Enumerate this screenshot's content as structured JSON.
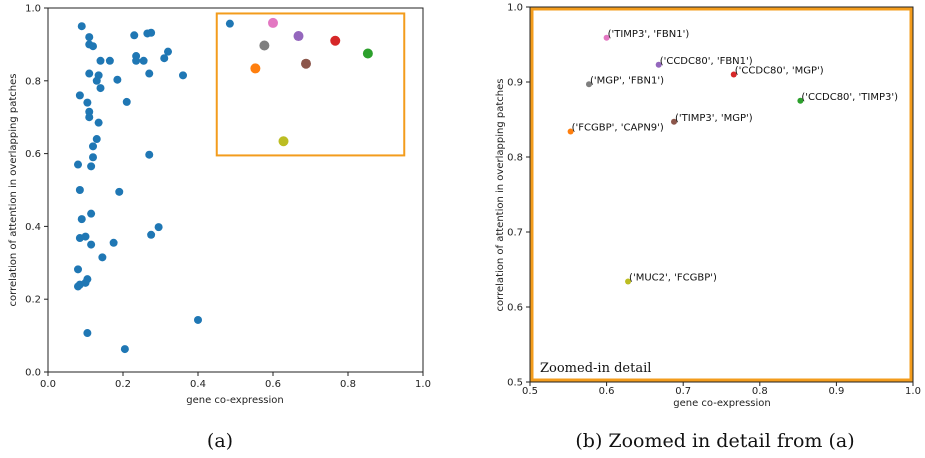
{
  "colors": {
    "scatter_blue": "#1f77b4",
    "highlight": "#f39c1c",
    "axis": "#222222"
  },
  "chart_data": [
    {
      "type": "scatter",
      "caption": "(a)",
      "xlabel": "gene co-expression",
      "ylabel": "correlation of attention in overlapping patches",
      "xlim": [
        0.0,
        1.0
      ],
      "ylim": [
        0.0,
        1.0
      ],
      "xticks": [
        "0.0",
        "0.2",
        "0.4",
        "0.6",
        "0.8",
        "1.0"
      ],
      "yticks": [
        "0.0",
        "0.2",
        "0.4",
        "0.6",
        "0.8",
        "1.0"
      ],
      "highlight_box": {
        "x": [
          0.45,
          0.95
        ],
        "y": [
          0.595,
          0.985
        ]
      },
      "points": [
        [
          0.09,
          0.95
        ],
        [
          0.11,
          0.92
        ],
        [
          0.11,
          0.9
        ],
        [
          0.12,
          0.895
        ],
        [
          0.14,
          0.855
        ],
        [
          0.165,
          0.855
        ],
        [
          0.23,
          0.925
        ],
        [
          0.265,
          0.93
        ],
        [
          0.275,
          0.932
        ],
        [
          0.235,
          0.868
        ],
        [
          0.235,
          0.855
        ],
        [
          0.255,
          0.855
        ],
        [
          0.31,
          0.862
        ],
        [
          0.32,
          0.88
        ],
        [
          0.11,
          0.82
        ],
        [
          0.135,
          0.815
        ],
        [
          0.13,
          0.8
        ],
        [
          0.14,
          0.78
        ],
        [
          0.185,
          0.803
        ],
        [
          0.27,
          0.82
        ],
        [
          0.36,
          0.815
        ],
        [
          0.085,
          0.76
        ],
        [
          0.105,
          0.74
        ],
        [
          0.21,
          0.742
        ],
        [
          0.11,
          0.715
        ],
        [
          0.11,
          0.7
        ],
        [
          0.135,
          0.685
        ],
        [
          0.13,
          0.64
        ],
        [
          0.12,
          0.62
        ],
        [
          0.12,
          0.59
        ],
        [
          0.27,
          0.597
        ],
        [
          0.08,
          0.57
        ],
        [
          0.115,
          0.565
        ],
        [
          0.085,
          0.5
        ],
        [
          0.19,
          0.495
        ],
        [
          0.115,
          0.435
        ],
        [
          0.09,
          0.42
        ],
        [
          0.295,
          0.398
        ],
        [
          0.275,
          0.377
        ],
        [
          0.085,
          0.368
        ],
        [
          0.1,
          0.372
        ],
        [
          0.115,
          0.35
        ],
        [
          0.175,
          0.355
        ],
        [
          0.145,
          0.315
        ],
        [
          0.08,
          0.282
        ],
        [
          0.105,
          0.255
        ],
        [
          0.085,
          0.24
        ],
        [
          0.08,
          0.235
        ],
        [
          0.1,
          0.245
        ],
        [
          0.4,
          0.143
        ],
        [
          0.105,
          0.107
        ],
        [
          0.205,
          0.063
        ],
        [
          0.485,
          0.957
        ]
      ],
      "colored_points": [
        {
          "x": 0.6,
          "y": 0.959,
          "color": "#e377c2"
        },
        {
          "x": 0.668,
          "y": 0.923,
          "color": "#9467bd"
        },
        {
          "x": 0.766,
          "y": 0.91,
          "color": "#d62728"
        },
        {
          "x": 0.577,
          "y": 0.897,
          "color": "#7f7f7f"
        },
        {
          "x": 0.853,
          "y": 0.875,
          "color": "#2ca02c"
        },
        {
          "x": 0.688,
          "y": 0.847,
          "color": "#8c564b"
        },
        {
          "x": 0.553,
          "y": 0.834,
          "color": "#ff7f0e"
        },
        {
          "x": 0.628,
          "y": 0.634,
          "color": "#bcbd22"
        }
      ]
    },
    {
      "type": "scatter",
      "caption": "(b) Zoomed in detail from (a)",
      "annotation": "Zoomed-in detail",
      "xlabel": "gene co-expression",
      "ylabel": "correlation of attention in overlapping patches",
      "xlim": [
        0.5,
        1.0
      ],
      "ylim": [
        0.5,
        1.0
      ],
      "xticks": [
        "0.5",
        "0.6",
        "0.7",
        "0.8",
        "0.9",
        "1.0"
      ],
      "yticks": [
        "0.5",
        "0.6",
        "0.7",
        "0.8",
        "0.9",
        "1.0"
      ],
      "points": [
        {
          "x": 0.6,
          "y": 0.959,
          "color": "#e377c2",
          "label": "('TIMP3', 'FBN1')"
        },
        {
          "x": 0.668,
          "y": 0.923,
          "color": "#9467bd",
          "label": "('CCDC80', 'FBN1')"
        },
        {
          "x": 0.766,
          "y": 0.91,
          "color": "#d62728",
          "label": "('CCDC80', 'MGP')"
        },
        {
          "x": 0.577,
          "y": 0.897,
          "color": "#7f7f7f",
          "label": "('MGP', 'FBN1')"
        },
        {
          "x": 0.853,
          "y": 0.875,
          "color": "#2ca02c",
          "label": "('CCDC80', 'TIMP3')"
        },
        {
          "x": 0.688,
          "y": 0.847,
          "color": "#8c564b",
          "label": "('TIMP3', 'MGP')"
        },
        {
          "x": 0.553,
          "y": 0.834,
          "color": "#ff7f0e",
          "label": "('FCGBP', 'CAPN9')"
        },
        {
          "x": 0.628,
          "y": 0.634,
          "color": "#bcbd22",
          "label": "('MUC2', 'FCGBP')"
        }
      ]
    }
  ]
}
